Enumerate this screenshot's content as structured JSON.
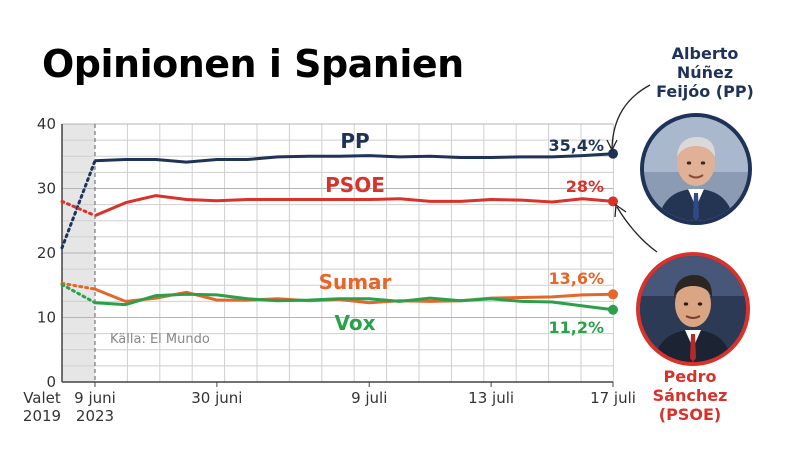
{
  "title": "Opinionen i Spanien",
  "source_note": "Källa: El Mundo",
  "colors": {
    "PP": "#1f3258",
    "PSOE": "#d9322b",
    "Sumar": "#e6662a",
    "Vox": "#2aa04a",
    "grid": "#cfcfcf",
    "election_band": "#e6e6e6"
  },
  "people": {
    "feijoo": {
      "name_lines": [
        "Alberto",
        "Núñez",
        "Feijóo (PP)"
      ],
      "icon": "portrait-photo"
    },
    "sanchez": {
      "name_lines": [
        "Pedro",
        "Sánchez",
        "(PSOE)"
      ],
      "icon": "portrait-photo"
    }
  },
  "chart_data": {
    "type": "line",
    "ylim": [
      0,
      40
    ],
    "y_ticks": [
      0,
      10,
      20,
      30,
      40
    ],
    "x_tick_labels": [
      {
        "lines": [
          "Valet",
          "2019"
        ],
        "x": -1
      },
      {
        "lines": [
          "9 juni",
          "2023"
        ],
        "x": 0
      },
      {
        "lines": [
          "30 juni"
        ],
        "x": 4
      },
      {
        "lines": [
          "9 juli"
        ],
        "x": 9
      },
      {
        "lines": [
          "13 juli"
        ],
        "x": 13
      },
      {
        "lines": [
          "17 juli"
        ],
        "x": 17
      }
    ],
    "election_2019": {
      "PP": 20.8,
      "PSOE": 28.0,
      "Sumar": 15.3,
      "Vox": 15.1
    },
    "series": [
      {
        "name": "PP",
        "end_label": "35,4%",
        "points": [
          [
            0,
            34.3
          ],
          [
            1,
            34.5
          ],
          [
            2,
            34.5
          ],
          [
            3,
            34.1
          ],
          [
            4,
            34.5
          ],
          [
            5,
            34.5
          ],
          [
            6,
            34.9
          ],
          [
            7,
            35.0
          ],
          [
            8,
            35.0
          ],
          [
            9,
            35.1
          ],
          [
            10,
            34.9
          ],
          [
            11,
            35.0
          ],
          [
            12,
            34.8
          ],
          [
            13,
            34.8
          ],
          [
            14,
            34.9
          ],
          [
            15,
            34.9
          ],
          [
            16,
            35.1
          ],
          [
            17,
            35.4
          ]
        ]
      },
      {
        "name": "PSOE",
        "end_label": "28%",
        "points": [
          [
            0,
            25.8
          ],
          [
            1,
            27.8
          ],
          [
            2,
            28.9
          ],
          [
            3,
            28.3
          ],
          [
            4,
            28.1
          ],
          [
            5,
            28.3
          ],
          [
            6,
            28.3
          ],
          [
            7,
            28.3
          ],
          [
            8,
            28.3
          ],
          [
            9,
            28.3
          ],
          [
            10,
            28.4
          ],
          [
            11,
            28.0
          ],
          [
            12,
            28.0
          ],
          [
            13,
            28.3
          ],
          [
            14,
            28.2
          ],
          [
            15,
            27.9
          ],
          [
            16,
            28.4
          ],
          [
            17,
            28.0
          ]
        ]
      },
      {
        "name": "Sumar",
        "end_label": "13,6%",
        "points": [
          [
            0,
            14.4
          ],
          [
            1,
            12.5
          ],
          [
            2,
            13.0
          ],
          [
            3,
            13.9
          ],
          [
            4,
            12.7
          ],
          [
            5,
            12.7
          ],
          [
            6,
            12.9
          ],
          [
            7,
            12.6
          ],
          [
            8,
            12.8
          ],
          [
            9,
            12.3
          ],
          [
            10,
            12.6
          ],
          [
            11,
            12.5
          ],
          [
            12,
            12.6
          ],
          [
            13,
            13.0
          ],
          [
            14,
            13.1
          ],
          [
            15,
            13.2
          ],
          [
            16,
            13.5
          ],
          [
            17,
            13.6
          ]
        ]
      },
      {
        "name": "Vox",
        "end_label": "11,2%",
        "points": [
          [
            0,
            12.3
          ],
          [
            1,
            12.0
          ],
          [
            2,
            13.4
          ],
          [
            3,
            13.6
          ],
          [
            4,
            13.5
          ],
          [
            5,
            12.9
          ],
          [
            6,
            12.6
          ],
          [
            7,
            12.7
          ],
          [
            8,
            12.9
          ],
          [
            9,
            12.9
          ],
          [
            10,
            12.5
          ],
          [
            11,
            13.0
          ],
          [
            12,
            12.6
          ],
          [
            13,
            12.9
          ],
          [
            14,
            12.5
          ],
          [
            15,
            12.4
          ],
          [
            16,
            11.8
          ],
          [
            17,
            11.2
          ]
        ]
      }
    ]
  }
}
